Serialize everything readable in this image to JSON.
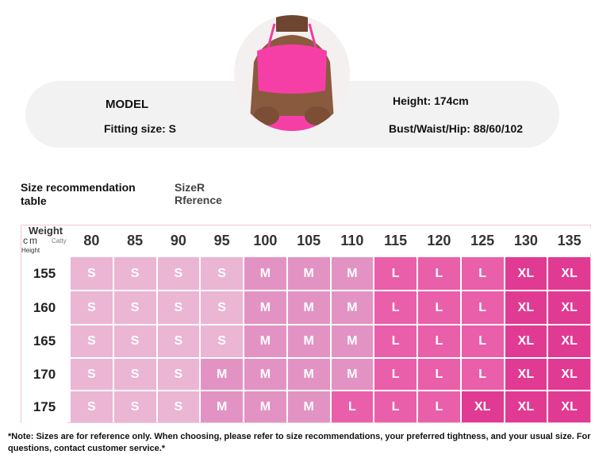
{
  "header": {
    "model_label": "MODEL",
    "fitting_size": "Fitting size: S",
    "height": "Height: 174cm",
    "measurements": "Bust/Waist/Hip: 88/60/102"
  },
  "table": {
    "title": "Size recommendation table",
    "reference_label": [
      "SizeR",
      "Rference"
    ],
    "corner": {
      "weight": "Weight",
      "unit_cm": "cm",
      "unit_catty": "Catty",
      "height": "Height"
    },
    "columns": [
      80,
      85,
      90,
      95,
      100,
      105,
      110,
      115,
      120,
      125,
      130,
      135
    ],
    "size_colors": {
      "S": "#ebb5d4",
      "M": "#e293c3",
      "L": "#e95faa",
      "XL": "#e13a93"
    },
    "rows": [
      {
        "height": 155,
        "sizes": [
          "S",
          "S",
          "S",
          "S",
          "M",
          "M",
          "M",
          "L",
          "L",
          "L",
          "XL",
          "XL"
        ]
      },
      {
        "height": 160,
        "sizes": [
          "S",
          "S",
          "S",
          "S",
          "M",
          "M",
          "M",
          "L",
          "L",
          "L",
          "XL",
          "XL"
        ]
      },
      {
        "height": 165,
        "sizes": [
          "S",
          "S",
          "S",
          "S",
          "M",
          "M",
          "M",
          "L",
          "L",
          "L",
          "XL",
          "XL"
        ]
      },
      {
        "height": 170,
        "sizes": [
          "S",
          "S",
          "S",
          "M",
          "M",
          "M",
          "M",
          "L",
          "L",
          "L",
          "XL",
          "XL"
        ]
      },
      {
        "height": 175,
        "sizes": [
          "S",
          "S",
          "S",
          "M",
          "M",
          "M",
          "L",
          "L",
          "L",
          "XL",
          "XL",
          "XL"
        ]
      }
    ]
  },
  "note": "*Note: Sizes are for reference only. When choosing, please refer to size recommendations, your preferred tightness, and your usual size. For questions, contact customer service.*"
}
